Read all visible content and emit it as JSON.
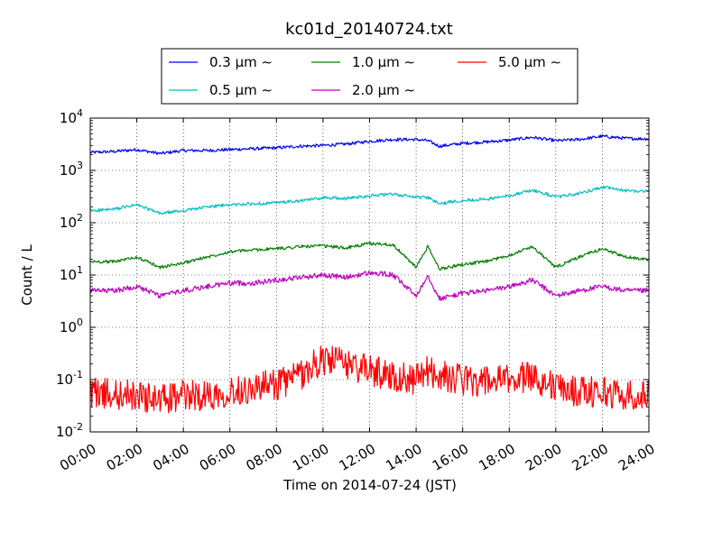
{
  "chart_data": {
    "type": "line",
    "title": "kc01d_20140724.txt",
    "xlabel": "Time on 2014-07-24 (JST)",
    "ylabel": "Count / L",
    "y_scale": "log",
    "ylim": [
      0.01,
      10000
    ],
    "xlim": [
      "00:00",
      "24:00"
    ],
    "grid": true,
    "legend_position": "top-center",
    "x_ticks": [
      "00:00",
      "02:00",
      "04:00",
      "06:00",
      "08:00",
      "10:00",
      "12:00",
      "14:00",
      "16:00",
      "18:00",
      "20:00",
      "22:00",
      "24:00"
    ],
    "y_ticks": [
      {
        "base": "10",
        "exp": "-2"
      },
      {
        "base": "10",
        "exp": "-1"
      },
      {
        "base": "10",
        "exp": "0"
      },
      {
        "base": "10",
        "exp": "1"
      },
      {
        "base": "10",
        "exp": "2"
      },
      {
        "base": "10",
        "exp": "3"
      },
      {
        "base": "10",
        "exp": "4"
      }
    ],
    "x": [
      "00:00",
      "01:00",
      "02:00",
      "03:00",
      "04:00",
      "05:00",
      "06:00",
      "07:00",
      "08:00",
      "09:00",
      "10:00",
      "11:00",
      "12:00",
      "13:00",
      "14:00",
      "14:30",
      "15:00",
      "16:00",
      "17:00",
      "18:00",
      "19:00",
      "20:00",
      "21:00",
      "22:00",
      "23:00",
      "24:00"
    ],
    "series": [
      {
        "name": "0.3 µm ∼",
        "color": "#0000ff",
        "values": [
          2200,
          2300,
          2500,
          2100,
          2400,
          2400,
          2500,
          2600,
          2700,
          2900,
          3000,
          3200,
          3600,
          3900,
          3900,
          3700,
          2900,
          3300,
          3500,
          3800,
          4300,
          3700,
          3900,
          4500,
          4100,
          4000
        ]
      },
      {
        "name": "0.5 µm ∼",
        "color": "#00bfbf",
        "values": [
          170,
          180,
          220,
          150,
          170,
          200,
          220,
          230,
          240,
          260,
          300,
          290,
          330,
          350,
          310,
          300,
          230,
          270,
          280,
          330,
          420,
          310,
          360,
          480,
          410,
          400
        ]
      },
      {
        "name": "1.0 µm ∼",
        "color": "#008000",
        "values": [
          18,
          18,
          22,
          14,
          17,
          22,
          28,
          30,
          32,
          35,
          36,
          33,
          40,
          38,
          14,
          35,
          13,
          16,
          18,
          24,
          35,
          14,
          22,
          32,
          22,
          20
        ]
      },
      {
        "name": "2.0 µm ∼",
        "color": "#bf00bf",
        "values": [
          5,
          5,
          6,
          4,
          5,
          6,
          7,
          7,
          8,
          9,
          10,
          9,
          11,
          10,
          4,
          10,
          3.5,
          4.5,
          5,
          6,
          8,
          4,
          5,
          6,
          5,
          5
        ]
      },
      {
        "name": "5.0 µm ∼",
        "color": "#ff0000",
        "values": [
          0.06,
          0.05,
          0.05,
          0.04,
          0.05,
          0.05,
          0.06,
          0.07,
          0.08,
          0.12,
          0.25,
          0.2,
          0.15,
          0.12,
          0.1,
          0.15,
          0.12,
          0.1,
          0.09,
          0.1,
          0.12,
          0.07,
          0.06,
          0.06,
          0.05,
          0.05
        ]
      }
    ]
  }
}
